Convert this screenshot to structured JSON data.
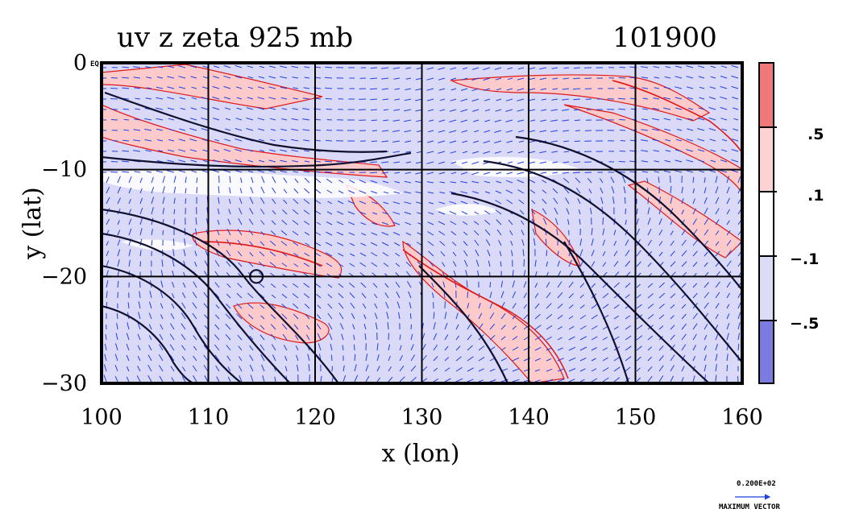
{
  "chart_data": {
    "type": "heatmap",
    "title_left": "uv z zeta 925 mb",
    "title_right": "101900",
    "xlabel": "x (lon)",
    "ylabel": "y (lat)",
    "xlim": [
      100,
      160
    ],
    "ylim": [
      -30,
      0
    ],
    "xticks": [
      100,
      110,
      120,
      130,
      140,
      150,
      160
    ],
    "yticks": [
      0,
      -10,
      -20,
      -30
    ],
    "xtick_labels": [
      "100",
      "110",
      "120",
      "130",
      "140",
      "150",
      "160"
    ],
    "ytick_labels": [
      "0",
      "−10",
      "−20",
      "−30"
    ],
    "corner_label": "EQ",
    "grid": true,
    "colorbar": {
      "levels": [
        ".5",
        ".1",
        "−.1",
        "−.5"
      ],
      "colors": [
        "#f07878",
        "#fcd2d2",
        "#ffffff",
        "#dcdcf7",
        "#7c7ce0"
      ]
    },
    "vector_key": {
      "value": "0.200E+02",
      "label": "MAXIMUM VECTOR"
    },
    "colors": {
      "positive_fill": "#fccaca",
      "negative_fill": "#dadaf8",
      "positive_contour": "#e01818",
      "negative_contour": "#1a1ae8",
      "height_contour": "#101030",
      "vector": "#2040e0"
    }
  }
}
